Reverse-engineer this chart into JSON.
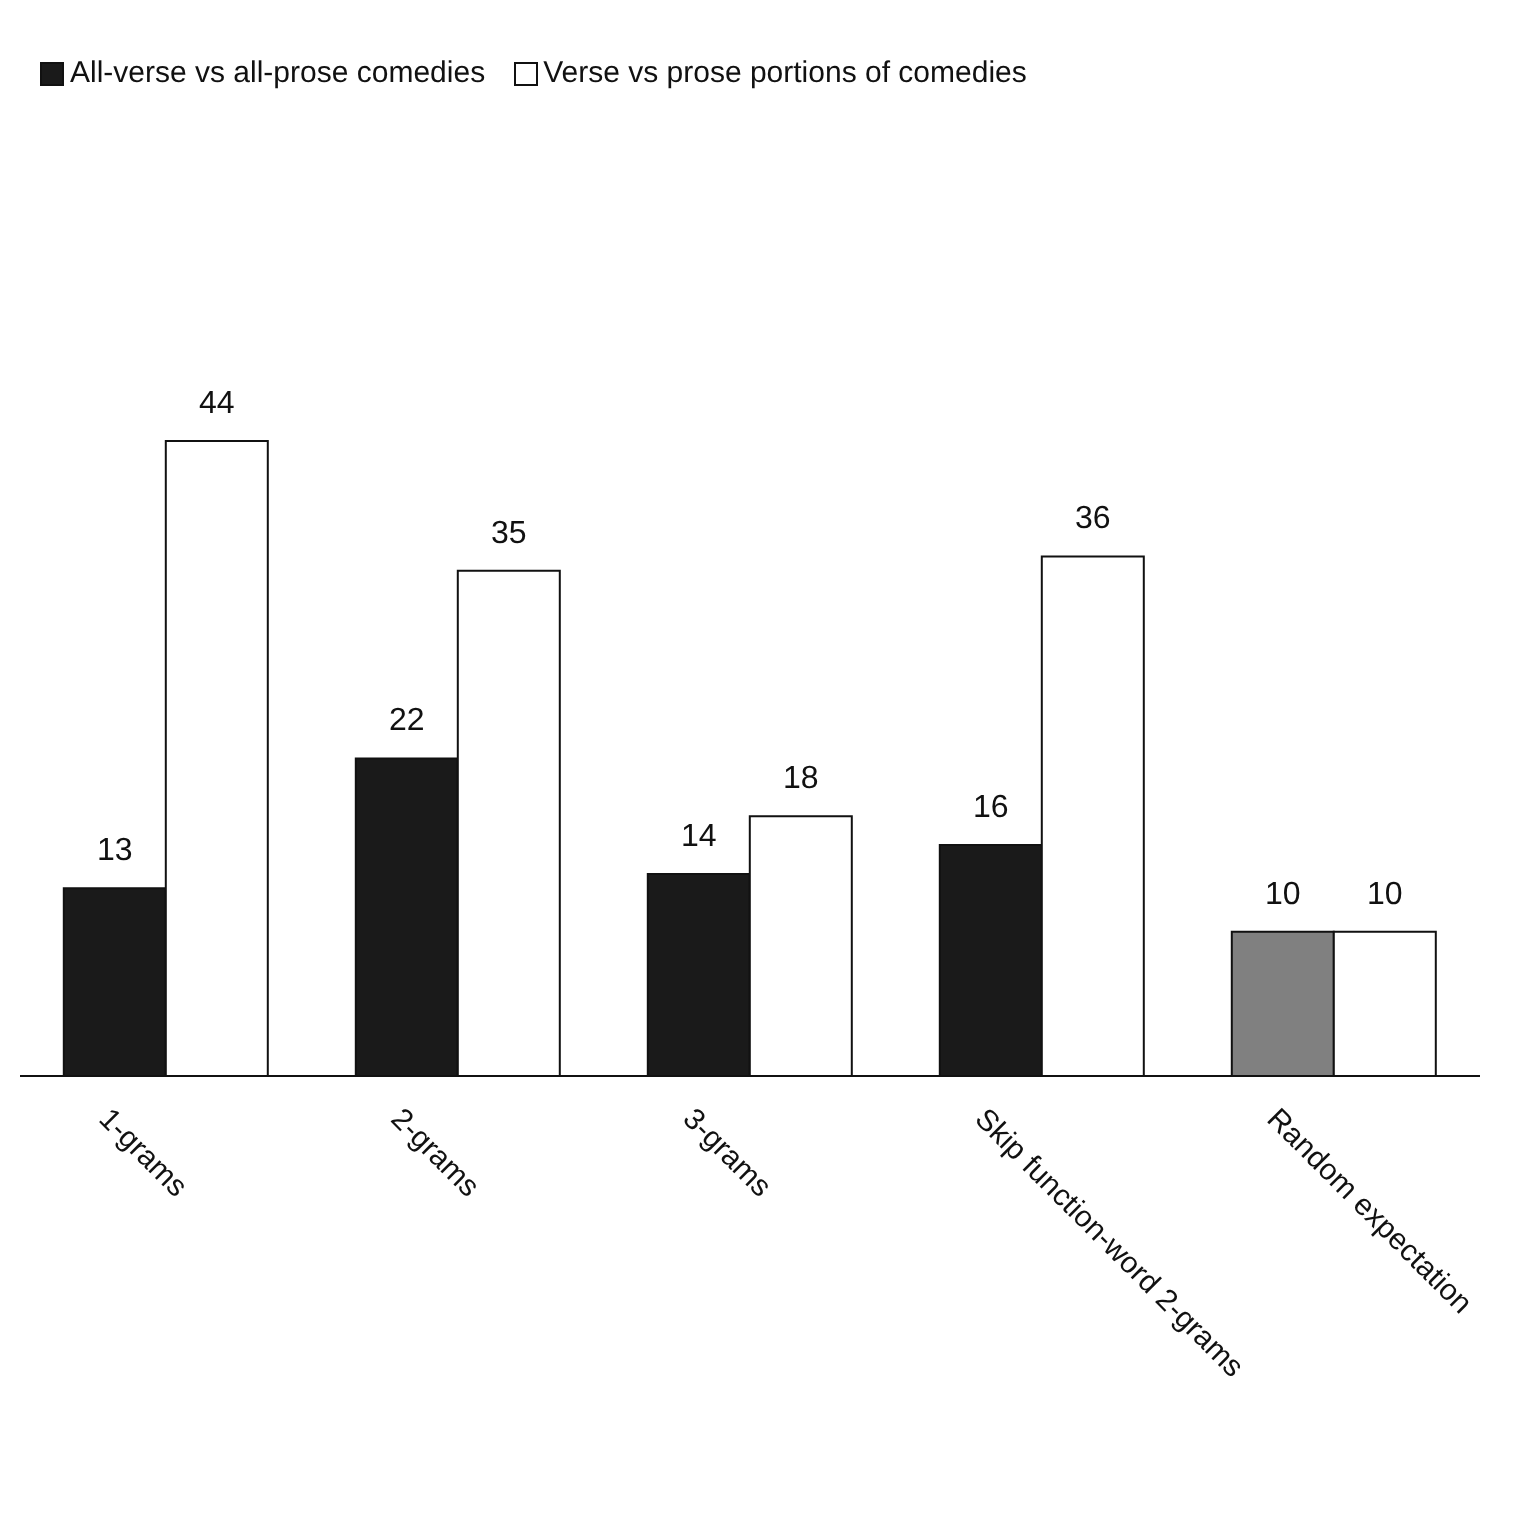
{
  "chart_data": {
    "type": "bar",
    "categories": [
      "1-grams",
      "2-grams",
      "3-grams",
      "Skip function-word 2-grams",
      "Random expectation"
    ],
    "series": [
      {
        "name": "All-verse vs all-prose comedies",
        "color": "#1a1a1a",
        "colors": [
          "#1a1a1a",
          "#1a1a1a",
          "#1a1a1a",
          "#1a1a1a",
          "#808080"
        ],
        "values": [
          13,
          22,
          14,
          16,
          10
        ]
      },
      {
        "name": "Verse vs prose portions of comedies",
        "color": "#ffffff",
        "values": [
          44,
          35,
          18,
          36,
          10
        ]
      }
    ],
    "data_labels": true,
    "legend": "top left",
    "grid": false,
    "tick_labels": "x"
  }
}
